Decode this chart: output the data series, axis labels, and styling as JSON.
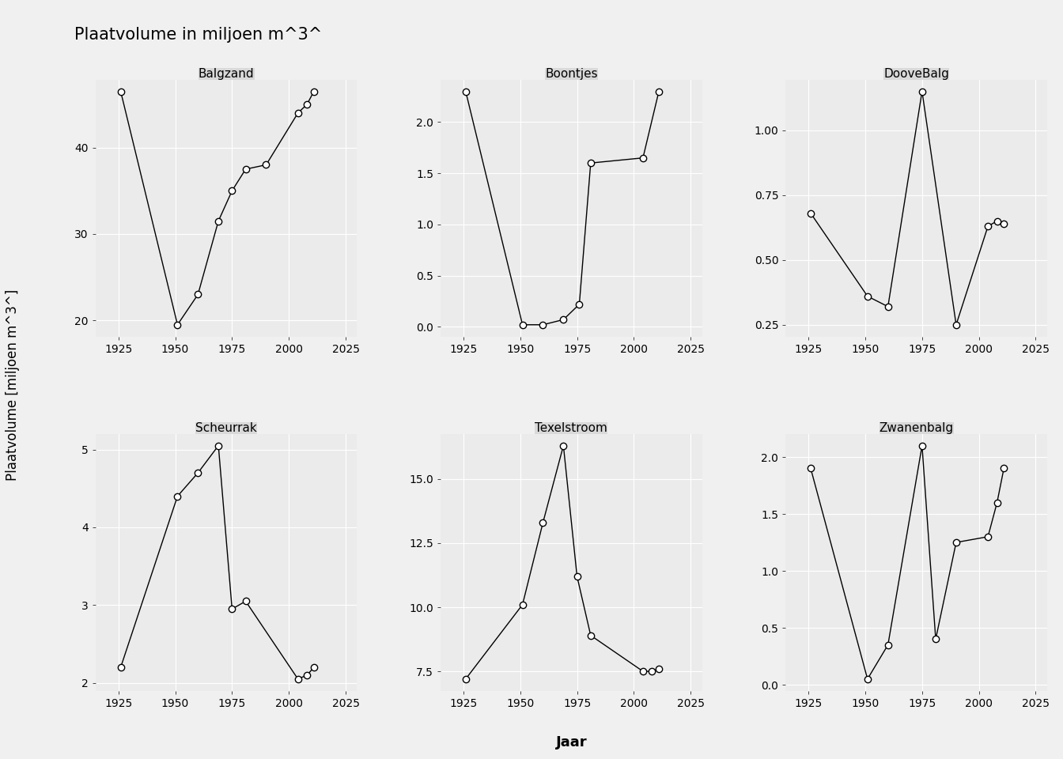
{
  "title": "Plaatvolume in miljoen m^3^",
  "ylabel": "Plaatvolume [miljoen m^3^]",
  "xlabel": "Jaar",
  "subplots": [
    {
      "title": "Balgzand",
      "x": [
        1926,
        1951,
        1960,
        1969,
        1975,
        1981,
        1990,
        2004,
        2008,
        2011
      ],
      "y": [
        46.5,
        19.5,
        23.0,
        31.5,
        35.0,
        37.5,
        38.0,
        44.0,
        45.0,
        46.5
      ],
      "xlim": [
        1915,
        2030
      ],
      "xticks": [
        1925,
        1950,
        1975,
        2000,
        2025
      ],
      "yticks": [
        20,
        30,
        40
      ]
    },
    {
      "title": "Boontjes",
      "x": [
        1926,
        1951,
        1960,
        1969,
        1976,
        1981,
        2004,
        2011
      ],
      "y": [
        2.3,
        0.02,
        0.02,
        0.07,
        0.22,
        1.6,
        1.65,
        2.3
      ],
      "xlim": [
        1915,
        2030
      ],
      "xticks": [
        1925,
        1950,
        1975,
        2000,
        2025
      ],
      "yticks": [
        0.0,
        0.5,
        1.0,
        1.5,
        2.0
      ]
    },
    {
      "title": "DooveBalg",
      "x": [
        1926,
        1951,
        1960,
        1975,
        1990,
        2004,
        2008,
        2011
      ],
      "y": [
        0.68,
        0.36,
        0.32,
        1.15,
        0.25,
        0.63,
        0.65,
        0.64
      ],
      "xlim": [
        1915,
        2030
      ],
      "xticks": [
        1925,
        1950,
        1975,
        2000,
        2025
      ],
      "yticks": [
        0.25,
        0.5,
        0.75,
        1.0
      ]
    },
    {
      "title": "Scheurrak",
      "x": [
        1926,
        1951,
        1960,
        1969,
        1975,
        1981,
        2004,
        2008,
        2011
      ],
      "y": [
        2.2,
        4.4,
        4.7,
        5.05,
        2.95,
        3.05,
        2.05,
        2.1,
        2.2
      ],
      "xlim": [
        1915,
        2030
      ],
      "xticks": [
        1925,
        1950,
        1975,
        2000,
        2025
      ],
      "yticks": [
        2,
        3,
        4,
        5
      ]
    },
    {
      "title": "Texelstroom",
      "x": [
        1926,
        1951,
        1960,
        1969,
        1975,
        1981,
        2004,
        2008,
        2011
      ],
      "y": [
        7.2,
        10.1,
        13.3,
        16.3,
        11.2,
        8.9,
        7.5,
        7.5,
        7.6
      ],
      "xlim": [
        1915,
        2030
      ],
      "xticks": [
        1925,
        1950,
        1975,
        2000,
        2025
      ],
      "yticks": [
        7.5,
        10.0,
        12.5,
        15.0
      ]
    },
    {
      "title": "Zwanenbalg",
      "x": [
        1926,
        1951,
        1960,
        1975,
        1981,
        1990,
        2004,
        2008,
        2011
      ],
      "y": [
        1.9,
        0.05,
        0.35,
        2.1,
        0.4,
        1.25,
        1.3,
        1.6,
        1.9
      ],
      "xlim": [
        1915,
        2030
      ],
      "xticks": [
        1925,
        1950,
        1975,
        2000,
        2025
      ],
      "yticks": [
        0.0,
        0.5,
        1.0,
        1.5,
        2.0
      ]
    }
  ],
  "fig_bg_color": "#f0f0f0",
  "panel_bg_color": "#ebebeb",
  "strip_bg_color": "#d9d9d9",
  "grid_color": "#ffffff",
  "line_color": "black",
  "marker_facecolor": "white",
  "marker_edgecolor": "black",
  "tick_color": "black",
  "label_color": "black",
  "title_color": "black",
  "title_fontsize": 15,
  "label_fontsize": 12,
  "tick_fontsize": 10,
  "strip_fontsize": 11,
  "marker_size": 6,
  "linewidth": 1.0
}
